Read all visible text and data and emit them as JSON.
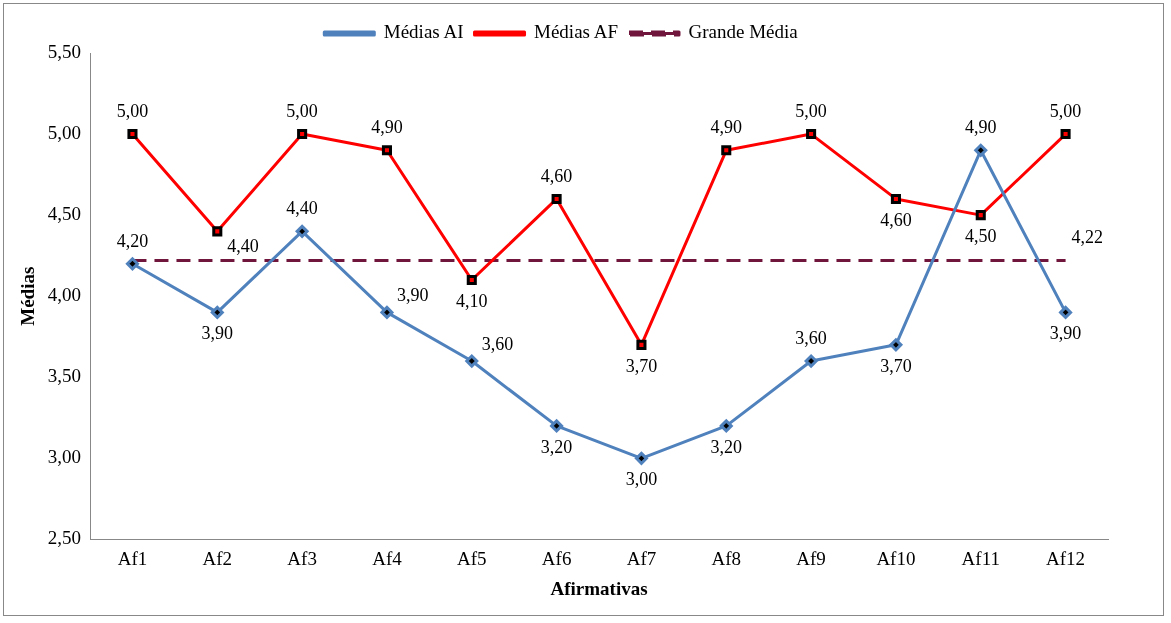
{
  "chart_data": {
    "type": "line",
    "xlabel": "Afirmativas",
    "ylabel": "Médias",
    "categories": [
      "Af1",
      "Af2",
      "Af3",
      "Af4",
      "Af5",
      "Af6",
      "Af7",
      "Af8",
      "Af9",
      "Af10",
      "Af11",
      "Af12"
    ],
    "ylim": [
      2.5,
      5.5
    ],
    "yticks": [
      {
        "value": 2.5,
        "label": "2,50"
      },
      {
        "value": 3,
        "label": "3,00"
      },
      {
        "value": 3.5,
        "label": "3,50"
      },
      {
        "value": 4,
        "label": "4,00"
      },
      {
        "value": 4.5,
        "label": "4,50"
      },
      {
        "value": 5,
        "label": "5,00"
      },
      {
        "value": 5.5,
        "label": "5,50"
      }
    ],
    "grid": false,
    "legend": "top",
    "series": [
      {
        "name": "Médias AI",
        "color": "#4f81bd",
        "marker": "diamond",
        "line_style": "solid",
        "values": [
          4.2,
          3.9,
          4.4,
          3.9,
          3.6,
          3.2,
          3.0,
          3.2,
          3.6,
          3.7,
          4.9,
          3.9
        ],
        "value_labels": [
          "4,20",
          "3,90",
          "4,40",
          "3,90",
          "3,60",
          "3,20",
          "3,00",
          "3,20",
          "3,60",
          "3,70",
          "4,90",
          "3,90"
        ]
      },
      {
        "name": "Médias AF",
        "color": "#ff0000",
        "marker": "square",
        "line_style": "solid",
        "values": [
          5.0,
          4.4,
          5.0,
          4.9,
          4.1,
          4.6,
          3.7,
          4.9,
          5.0,
          4.6,
          4.5,
          5.0
        ],
        "value_labels": [
          "5,00",
          "4,40",
          "5,00",
          "4,90",
          "4,10",
          "4,60",
          "3,70",
          "4,90",
          "5,00",
          "4,60",
          "4,50",
          "5,00"
        ]
      },
      {
        "name": "Grande Média",
        "color": "#70163c",
        "marker": "none",
        "line_style": "dashed",
        "values": [
          4.22,
          4.22,
          4.22,
          4.22,
          4.22,
          4.22,
          4.22,
          4.22,
          4.22,
          4.22,
          4.22,
          4.22
        ],
        "value_labels": [
          null,
          null,
          null,
          null,
          null,
          null,
          null,
          null,
          null,
          null,
          null,
          "4,22"
        ]
      }
    ]
  }
}
